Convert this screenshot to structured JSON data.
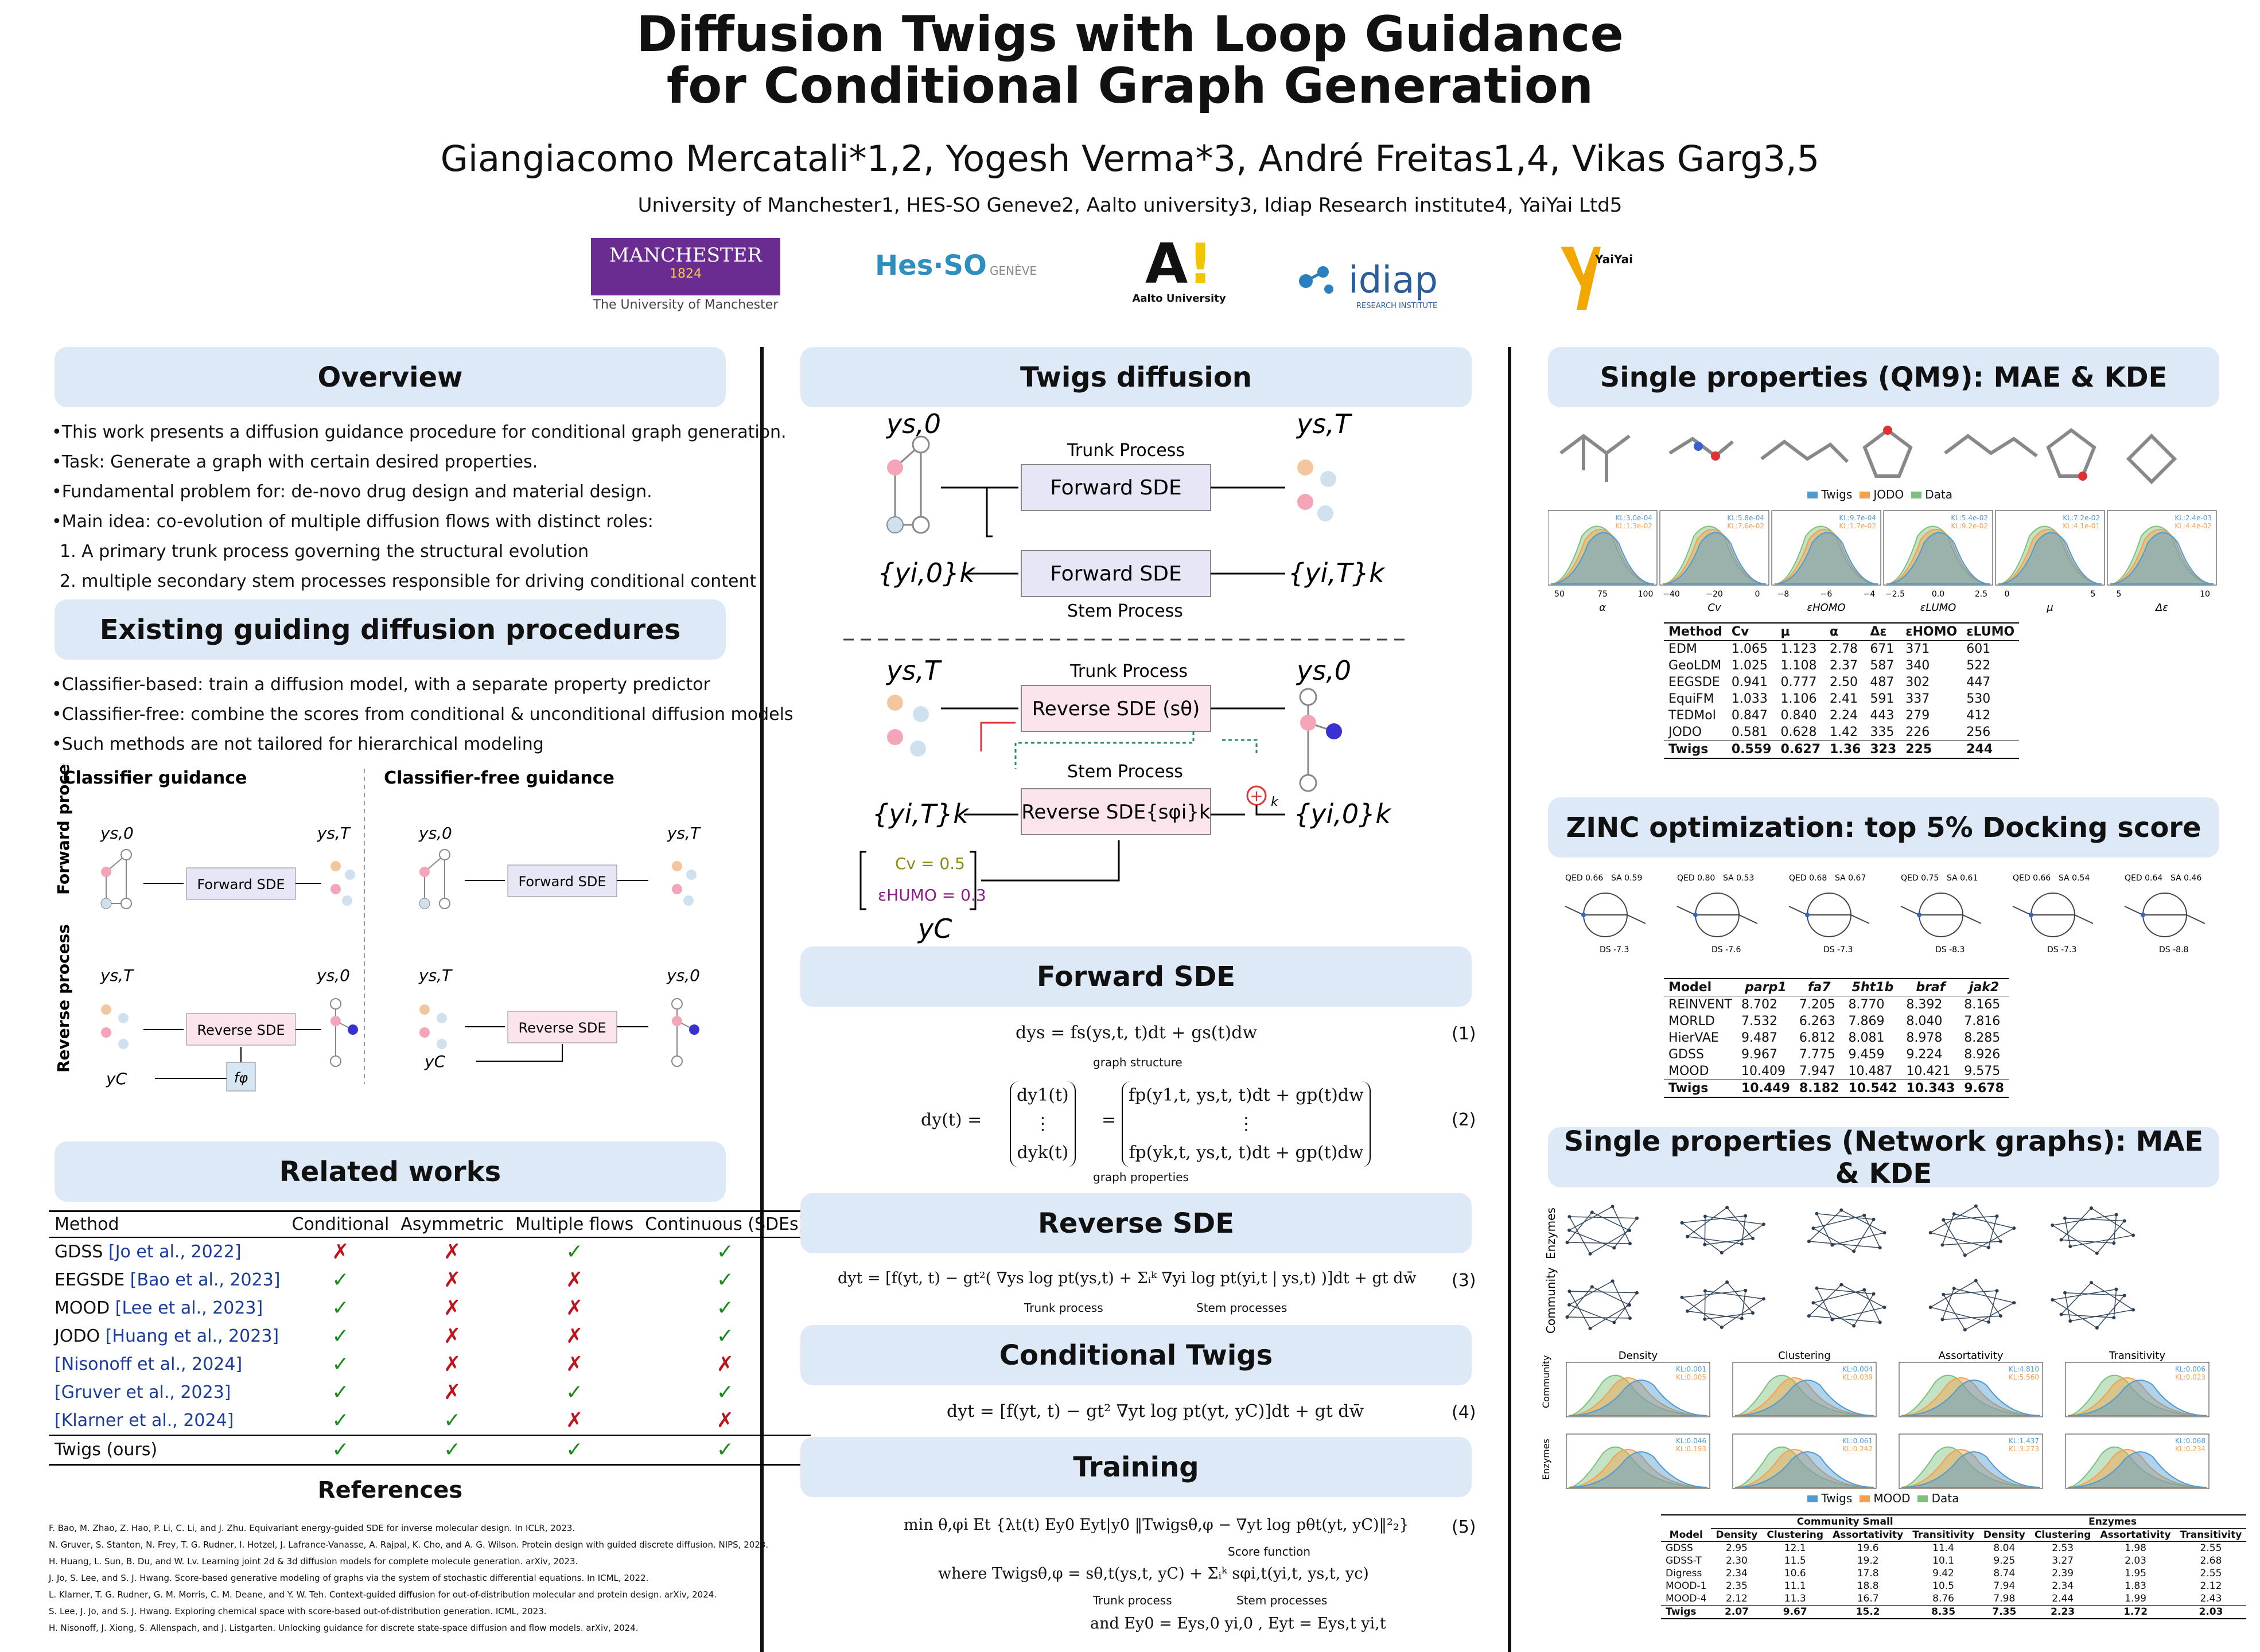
{
  "title": {
    "line1": "Diffusion Twigs with Loop Guidance",
    "line2": "for Conditional Graph Generation"
  },
  "authors": "Giangiacomo Mercatali*1,2, Yogesh Verma*3, André Freitas1,4, Vikas Garg3,5",
  "affiliations": "University of Manchester1, HES-SO Geneve2, Aalto university3, Idiap Research institute4, YaiYai Ltd5",
  "logos": {
    "manchester_main": "MANCHESTER",
    "manchester_year": "1824",
    "manchester_sub": "The University of Manchester",
    "hes": "Hes·SO",
    "hes_sub": "GENÈVE",
    "aalto_sub": "Aalto University",
    "idiap": "idiap",
    "idiap_sub": "RESEARCH INSTITUTE",
    "yaiyai": "YaiYai"
  },
  "overview": {
    "header": "Overview",
    "bullets": [
      "•This work presents a diffusion guidance procedure for conditional graph generation.",
      "•Task: Generate a graph with certain desired properties.",
      "•Fundamental problem for: de-novo drug design and material design.",
      "•Main idea: co-evolution of multiple diffusion flows with distinct roles:",
      "1. A primary trunk process governing the structural evolution",
      "2. multiple secondary stem processes responsible for driving conditional content"
    ]
  },
  "existing": {
    "header": "Existing guiding diffusion procedures",
    "bullets": [
      "•Classifier-based: train a diffusion model, with a separate property predictor",
      "•Classifier-free: combine the scores from conditional & unconditional diffusion models",
      "•Such methods are not tailored for hierarchical modeling"
    ],
    "fig": {
      "col1": "Classifier guidance",
      "col2": "Classifier-free guidance",
      "row1": "Forward process",
      "row2": "Reverse process",
      "ys0": "ys,0",
      "ysT": "ys,T",
      "yC": "yC",
      "fphi": "fφ",
      "fwd": "Forward SDE",
      "rev": "Reverse SDE"
    }
  },
  "related": {
    "header": "Related works",
    "columns": [
      "Method",
      "Conditional",
      "Asymmetric",
      "Multiple flows",
      "Continuous (SDEs)"
    ],
    "rows": [
      {
        "name": "GDSS ",
        "cite": "[Jo et al., 2022]",
        "v": [
          "✗",
          "✗",
          "✓",
          "✓"
        ]
      },
      {
        "name": "EEGSDE ",
        "cite": "[Bao et al., 2023]",
        "v": [
          "✓",
          "✗",
          "✗",
          "✓"
        ]
      },
      {
        "name": "MOOD ",
        "cite": "[Lee et al., 2023]",
        "v": [
          "✓",
          "✗",
          "✗",
          "✓"
        ]
      },
      {
        "name": "JODO ",
        "cite": "[Huang et al., 2023]",
        "v": [
          "✓",
          "✗",
          "✗",
          "✓"
        ]
      },
      {
        "name": "",
        "cite": "[Nisonoff et al., 2024]",
        "v": [
          "✓",
          "✗",
          "✗",
          "✗"
        ]
      },
      {
        "name": "",
        "cite": "[Gruver et al., 2023]",
        "v": [
          "✓",
          "✗",
          "✓",
          "✓"
        ]
      },
      {
        "name": "",
        "cite": "[Klarner et al., 2024]",
        "v": [
          "✓",
          "✓",
          "✗",
          "✗"
        ]
      }
    ],
    "ours": {
      "name": "Twigs (ours)",
      "v": [
        "✓",
        "✓",
        "✓",
        "✓"
      ]
    }
  },
  "references": {
    "header": "References",
    "items": [
      "F. Bao, M. Zhao, Z. Hao, P. Li, C. Li, and J. Zhu. Equivariant energy-guided SDE for inverse molecular design. In ICLR, 2023.",
      "N. Gruver, S. Stanton, N. Frey, T. G. Rudner, I. Hotzel, J. Lafrance-Vanasse, A. Rajpal, K. Cho, and A. G. Wilson. Protein design with guided discrete diffusion. NIPS, 2023.",
      "H. Huang, L. Sun, B. Du, and W. Lv. Learning joint 2d & 3d diffusion models for complete molecule generation. arXiv, 2023.",
      "J. Jo, S. Lee, and S. J. Hwang. Score-based generative modeling of graphs via the system of stochastic differential equations. In ICML, 2022.",
      "L. Klarner, T. G. Rudner, G. M. Morris, C. M. Deane, and Y. W. Teh. Context-guided diffusion for out-of-distribution molecular and protein design. arXiv, 2024.",
      "S. Lee, J. Jo, and S. J. Hwang. Exploring chemical space with score-based out-of-distribution generation. ICML, 2023.",
      "H. Nisonoff, J. Xiong, S. Allenspach, and J. Listgarten. Unlocking guidance for discrete state-space diffusion and flow models. arXiv, 2024."
    ]
  },
  "twigs": {
    "header": "Twigs diffusion",
    "trunk": "Trunk Process",
    "stem": "Stem Process",
    "fwd": "Forward SDE",
    "rev_trunk": "Reverse SDE (sθ)",
    "rev_stem": "Reverse SDE{sφi}k",
    "ys0": "ys,0",
    "ysT": "ys,T",
    "yi0": "{yi,0}k",
    "yiT": "{yi,T}k",
    "k": "k",
    "cv": "Cv = 0.5",
    "ehumo": "εHUMO = 0.3",
    "yC": "yC"
  },
  "forward": {
    "header": "Forward SDE",
    "eq1": "dys = fs(ys,t, t)dt + gs(t)dw",
    "eq1_label": "graph structure",
    "eq1_num": "(1)",
    "eq2_lhs": "dy(t) =",
    "eq2_v1": "dy1(t)",
    "eq2_v2": "⋮",
    "eq2_v3": "dyk(t)",
    "eq2_r1": "fp(y1,t, ys,t, t)dt + gp(t)dw",
    "eq2_r2": "⋮",
    "eq2_r3": "fp(yk,t, ys,t, t)dt + gp(t)dw",
    "eq2_label": "graph properties",
    "eq2_num": "(2)"
  },
  "reverse": {
    "header": "Reverse SDE",
    "eq": "dyt = [f(yt, t) − gt²( ∇ys log pt(ys,t) + Σᵢᵏ ∇yi log pt(yi,t | ys,t) )]dt + gt dw̄",
    "l1": "Trunk process",
    "l2": "Stem processes",
    "num": "(3)"
  },
  "conditional": {
    "header": "Conditional Twigs",
    "eq": "dyt = [f(yt, t) − gt² ∇yt log pt(yt, yC)]dt + gt dw̄",
    "num": "(4)"
  },
  "training": {
    "header": "Training",
    "eq1": "min θ,φi  Et {λt(t) Ey0 Eyt|y0 ‖Twigsθ,φ − ∇yt log pθt(yt, yC)‖²₂}",
    "l1": "Score function",
    "num": "(5)",
    "eq2": "where Twigsθ,φ = sθ,t(ys,t, yC) + Σᵢᵏ sφi,t(yi,t, ys,t, yc)",
    "l2": "Trunk process",
    "l3": "Stem processes",
    "eq3": "and   Ey0 = Eys,0 yi,0 ,  Eyt = Eys,t yi,t"
  },
  "qm9": {
    "header": "Single properties (QM9): MAE & KDE",
    "legend": [
      "Twigs",
      "JODO",
      "Data"
    ],
    "kde": [
      {
        "label": "α",
        "kl1": "KL:3.0e-04",
        "kl2": "KL:1.3e-02",
        "ticks": [
          "50",
          "75",
          "100"
        ]
      },
      {
        "label": "Cv",
        "kl1": "KL:5.8e-04",
        "kl2": "KL:7.6e-02",
        "ticks": [
          "−40",
          "−20",
          "0"
        ]
      },
      {
        "label": "εHOMO",
        "kl1": "KL:9.7e-04",
        "kl2": "KL:1.7e-02",
        "ticks": [
          "−8",
          "−6",
          "−4"
        ]
      },
      {
        "label": "εLUMO",
        "kl1": "KL:5.4e-02",
        "kl2": "KL:9.2e-02",
        "ticks": [
          "−2.5",
          "0.0",
          "2.5"
        ]
      },
      {
        "label": "μ",
        "kl1": "KL:7.2e-02",
        "kl2": "KL:4.1e-01",
        "ticks": [
          "0",
          "5"
        ]
      },
      {
        "label": "Δε",
        "kl1": "KL:2.4e-03",
        "kl2": "KL:4.4e-02",
        "ticks": [
          "5",
          "10"
        ]
      }
    ],
    "table": {
      "columns": [
        "Method",
        "Cv",
        "μ",
        "α",
        "Δε",
        "εHOMO",
        "εLUMO"
      ],
      "rows": [
        [
          "EDM",
          "1.065",
          "1.123",
          "2.78",
          "671",
          "371",
          "601"
        ],
        [
          "GeoLDM",
          "1.025",
          "1.108",
          "2.37",
          "587",
          "340",
          "522"
        ],
        [
          "EEGSDE",
          "0.941",
          "0.777",
          "2.50",
          "487",
          "302",
          "447"
        ],
        [
          "EquiFM",
          "1.033",
          "1.106",
          "2.41",
          "591",
          "337",
          "530"
        ],
        [
          "TEDMol",
          "0.847",
          "0.840",
          "2.24",
          "443",
          "279",
          "412"
        ],
        [
          "JODO",
          "0.581",
          "0.628",
          "1.42",
          "335",
          "226",
          "256"
        ]
      ],
      "ours": [
        "Twigs",
        "0.559",
        "0.627",
        "1.36",
        "323",
        "225",
        "244"
      ]
    }
  },
  "zinc": {
    "header": "ZINC optimization: top 5% Docking score",
    "mols": [
      {
        "qed": "QED 0.66",
        "sa": "SA 0.59",
        "ds": "DS -7.3"
      },
      {
        "qed": "QED 0.80",
        "sa": "SA 0.53",
        "ds": "DS -7.6"
      },
      {
        "qed": "QED 0.68",
        "sa": "SA 0.67",
        "ds": "DS -7.3"
      },
      {
        "qed": "QED 0.75",
        "sa": "SA 0.61",
        "ds": "DS -8.3"
      },
      {
        "qed": "QED 0.66",
        "sa": "SA 0.54",
        "ds": "DS -7.3"
      },
      {
        "qed": "QED 0.64",
        "sa": "SA 0.46",
        "ds": "DS -8.8"
      }
    ],
    "table": {
      "columns": [
        "Model",
        "parp1",
        "fa7",
        "5ht1b",
        "braf",
        "jak2"
      ],
      "rows": [
        [
          "REINVENT",
          "8.702",
          "7.205",
          "8.770",
          "8.392",
          "8.165"
        ],
        [
          "MORLD",
          "7.532",
          "6.263",
          "7.869",
          "8.040",
          "7.816"
        ],
        [
          "HierVAE",
          "9.487",
          "6.812",
          "8.081",
          "8.978",
          "8.285"
        ],
        [
          "GDSS",
          "9.967",
          "7.775",
          "9.459",
          "9.224",
          "8.926"
        ],
        [
          "MOOD",
          "10.409",
          "7.947",
          "10.487",
          "10.421",
          "9.575"
        ]
      ],
      "ours": [
        "Twigs",
        "10.449",
        "8.182",
        "10.542",
        "10.343",
        "9.678"
      ]
    }
  },
  "network": {
    "header": "Single properties (Network graphs): MAE & KDE",
    "row_labels": [
      "Enzymes",
      "Community"
    ],
    "kde_titles": [
      "Density",
      "Clustering",
      "Assortativity",
      "Transitivity"
    ],
    "kde_rows": [
      "Community",
      "Enzymes"
    ],
    "kde_kl": [
      [
        "KL:0.001",
        "KL:0.005"
      ],
      [
        "KL:0.004",
        "KL:0.039"
      ],
      [
        "KL:4.810",
        "KL:5.560"
      ],
      [
        "KL:0.006",
        "KL:0.023"
      ],
      [
        "KL:0.046",
        "KL:0.193"
      ],
      [
        "KL:0.061",
        "KL:0.242"
      ],
      [
        "KL:1.437",
        "KL:3.273"
      ],
      [
        "KL:0.068",
        "KL:0.234"
      ]
    ],
    "legend": [
      "Twigs",
      "MOOD",
      "Data"
    ],
    "table": {
      "group1": "Community Small",
      "group2": "Enzymes",
      "columns": [
        "Model",
        "Density",
        "Clustering",
        "Assortativity",
        "Transitivity",
        "Density",
        "Clustering",
        "Assortativity",
        "Transitivity"
      ],
      "rows": [
        [
          "GDSS",
          "2.95",
          "12.1",
          "19.6",
          "11.4",
          "8.04",
          "2.53",
          "1.98",
          "2.55"
        ],
        [
          "GDSS-T",
          "2.30",
          "11.5",
          "19.2",
          "10.1",
          "9.25",
          "3.27",
          "2.03",
          "2.68"
        ],
        [
          "Digress",
          "2.34",
          "10.6",
          "17.8",
          "9.42",
          "8.74",
          "2.39",
          "1.95",
          "2.55"
        ],
        [
          "MOOD-1",
          "2.35",
          "11.1",
          "18.8",
          "10.5",
          "7.94",
          "2.34",
          "1.83",
          "2.12"
        ],
        [
          "MOOD-4",
          "2.12",
          "11.3",
          "16.7",
          "8.76",
          "7.98",
          "2.44",
          "1.99",
          "2.43"
        ]
      ],
      "ours": [
        "Twigs",
        "2.07",
        "9.67",
        "15.2",
        "8.35",
        "7.35",
        "2.23",
        "1.72",
        "2.03"
      ]
    }
  },
  "colors": {
    "header_bg": "#dde9f7",
    "twigs": "#4f9bd0",
    "jodo": "#f5a04a",
    "data": "#7dbf7d",
    "check": "#1a8a1a",
    "cross": "#c0131b",
    "cite": "#1a3c9a",
    "manchester": "#6a2c91",
    "fwd_box": "#e6e6f6",
    "rev_box": "#fbe4ec"
  }
}
